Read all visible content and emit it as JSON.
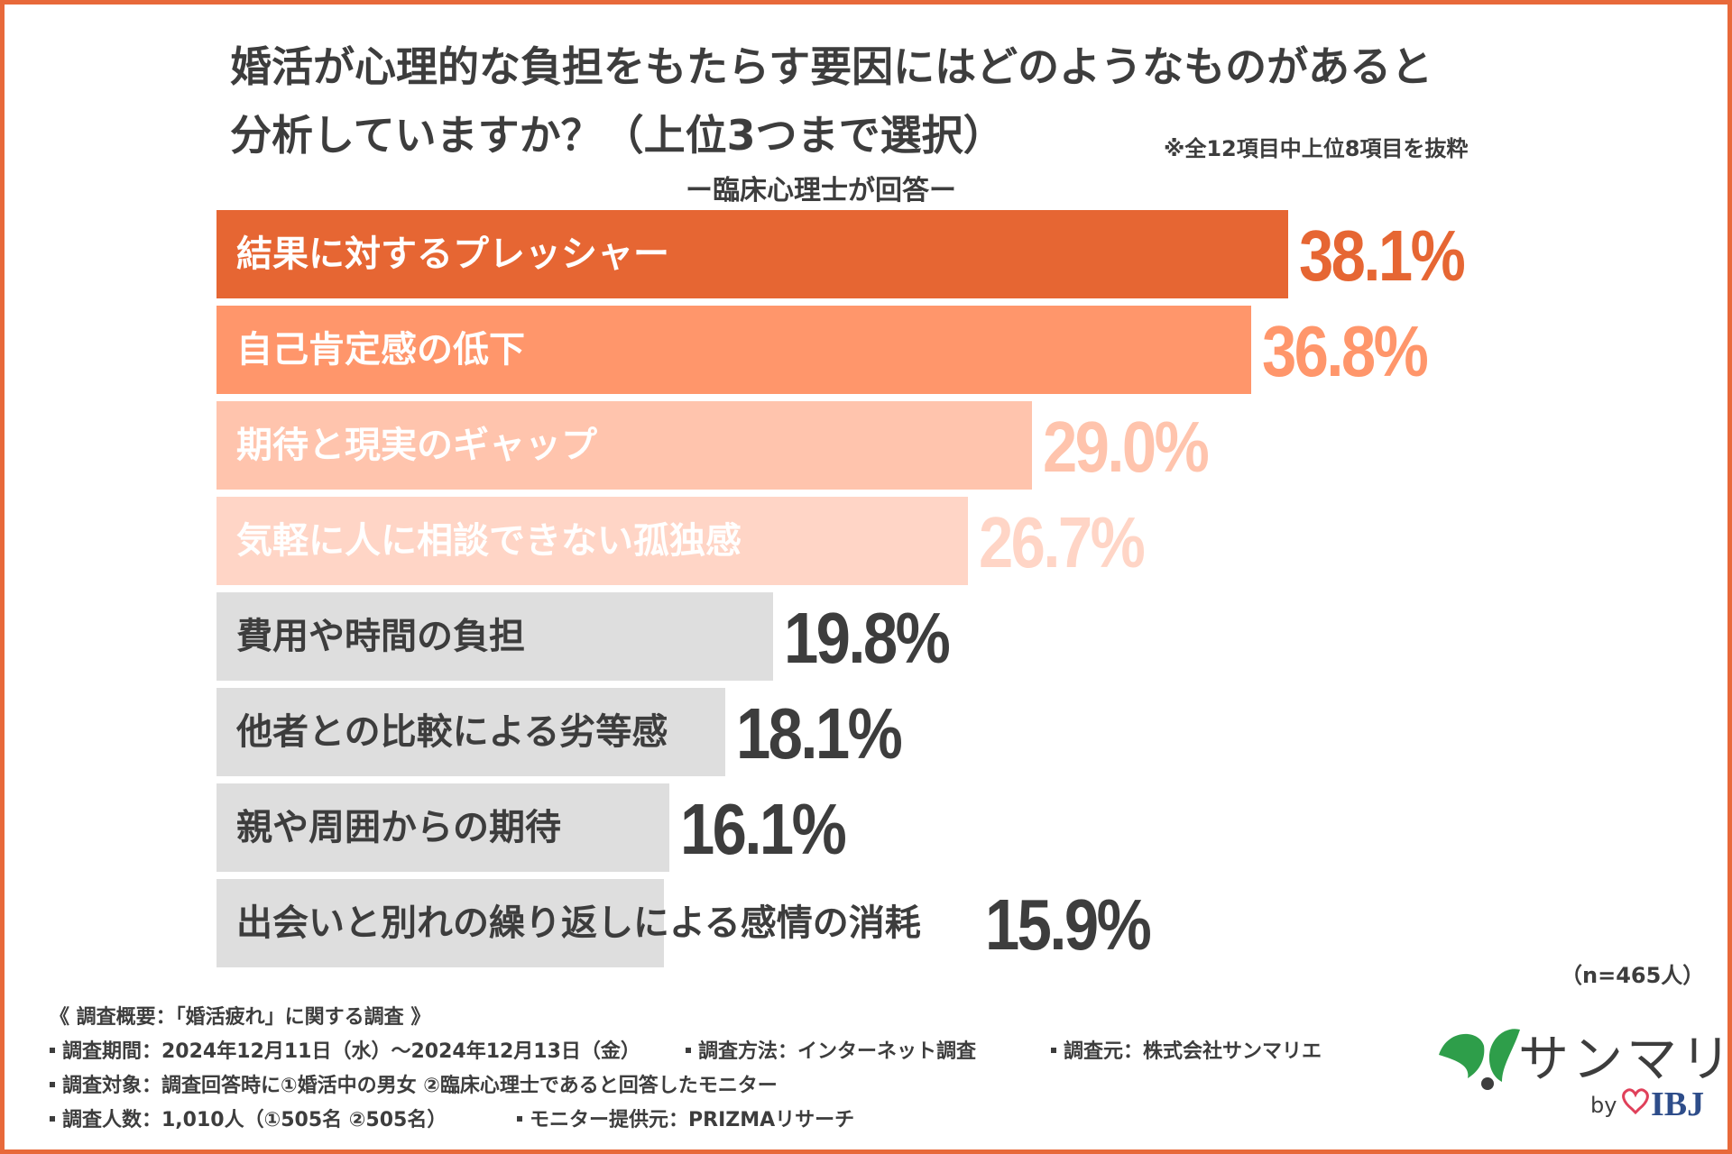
{
  "header": {
    "title_line1": "婚活が心理的な負担をもたらす要因にはどのようなものがあると",
    "title_line2": "分析していますか？（上位3つまで選択）",
    "note": "※全12項目中上位8項目を抜粋",
    "subtitle": "ー臨床心理士が回答ー"
  },
  "chart_data": {
    "type": "bar",
    "orientation": "horizontal",
    "categories": [
      "結果に対するプレッシャー",
      "自己肯定感の低下",
      "期待と現実のギャップ",
      "気軽に人に相談できない孤独感",
      "費用や時間の負担",
      "他者との比較による劣等感",
      "親や周囲からの期待",
      "出会いと別れの繰り返しによる感情の消耗"
    ],
    "values": [
      38.1,
      36.8,
      29.0,
      26.7,
      19.8,
      18.1,
      16.1,
      15.9
    ],
    "value_labels": [
      "38.1%",
      "36.8%",
      "29.0%",
      "26.7%",
      "19.8%",
      "18.1%",
      "16.1%",
      "15.9%"
    ],
    "bar_colors": [
      "#e66633",
      "#ff966b",
      "#ffc4ad",
      "#ffd5c6",
      "#dedede",
      "#dedede",
      "#dedede",
      "#dedede"
    ],
    "label_colors": [
      "#ffffff",
      "#ffffff",
      "#ffffff",
      "#ffffff",
      "#3d3d3d",
      "#3d3d3d",
      "#3d3d3d",
      "#3d3d3d"
    ],
    "value_colors": [
      "#e66633",
      "#ff966b",
      "#ffc4ad",
      "#ffd5c6",
      "#3d3d3d",
      "#3d3d3d",
      "#3d3d3d",
      "#3d3d3d"
    ],
    "xlim": [
      0,
      38.1
    ],
    "grid": false,
    "title": "",
    "xlabel": "",
    "ylabel": ""
  },
  "sample_size": "（n=465人）",
  "survey": {
    "heading": "《 調査概要：「婚活疲れ」に関する調査 》",
    "period": "調査期間：2024年12月11日（水）〜2024年12月13日（金）",
    "method": "調査方法：インターネット調査",
    "source": "調査元：株式会社サンマリエ",
    "target": "調査対象：調査回答時に①婚活中の男女 ②臨床心理士であると回答したモニター",
    "count": "調査人数：1,010人（①505名 ②505名）",
    "provider": "モニター提供元：PRIZMAリサーチ"
  },
  "logo": {
    "brand": "サンマリエ",
    "by": "by",
    "partner": "IBJ",
    "leaf_color": "#2e9e4a",
    "heart_color": "#e0405a"
  }
}
